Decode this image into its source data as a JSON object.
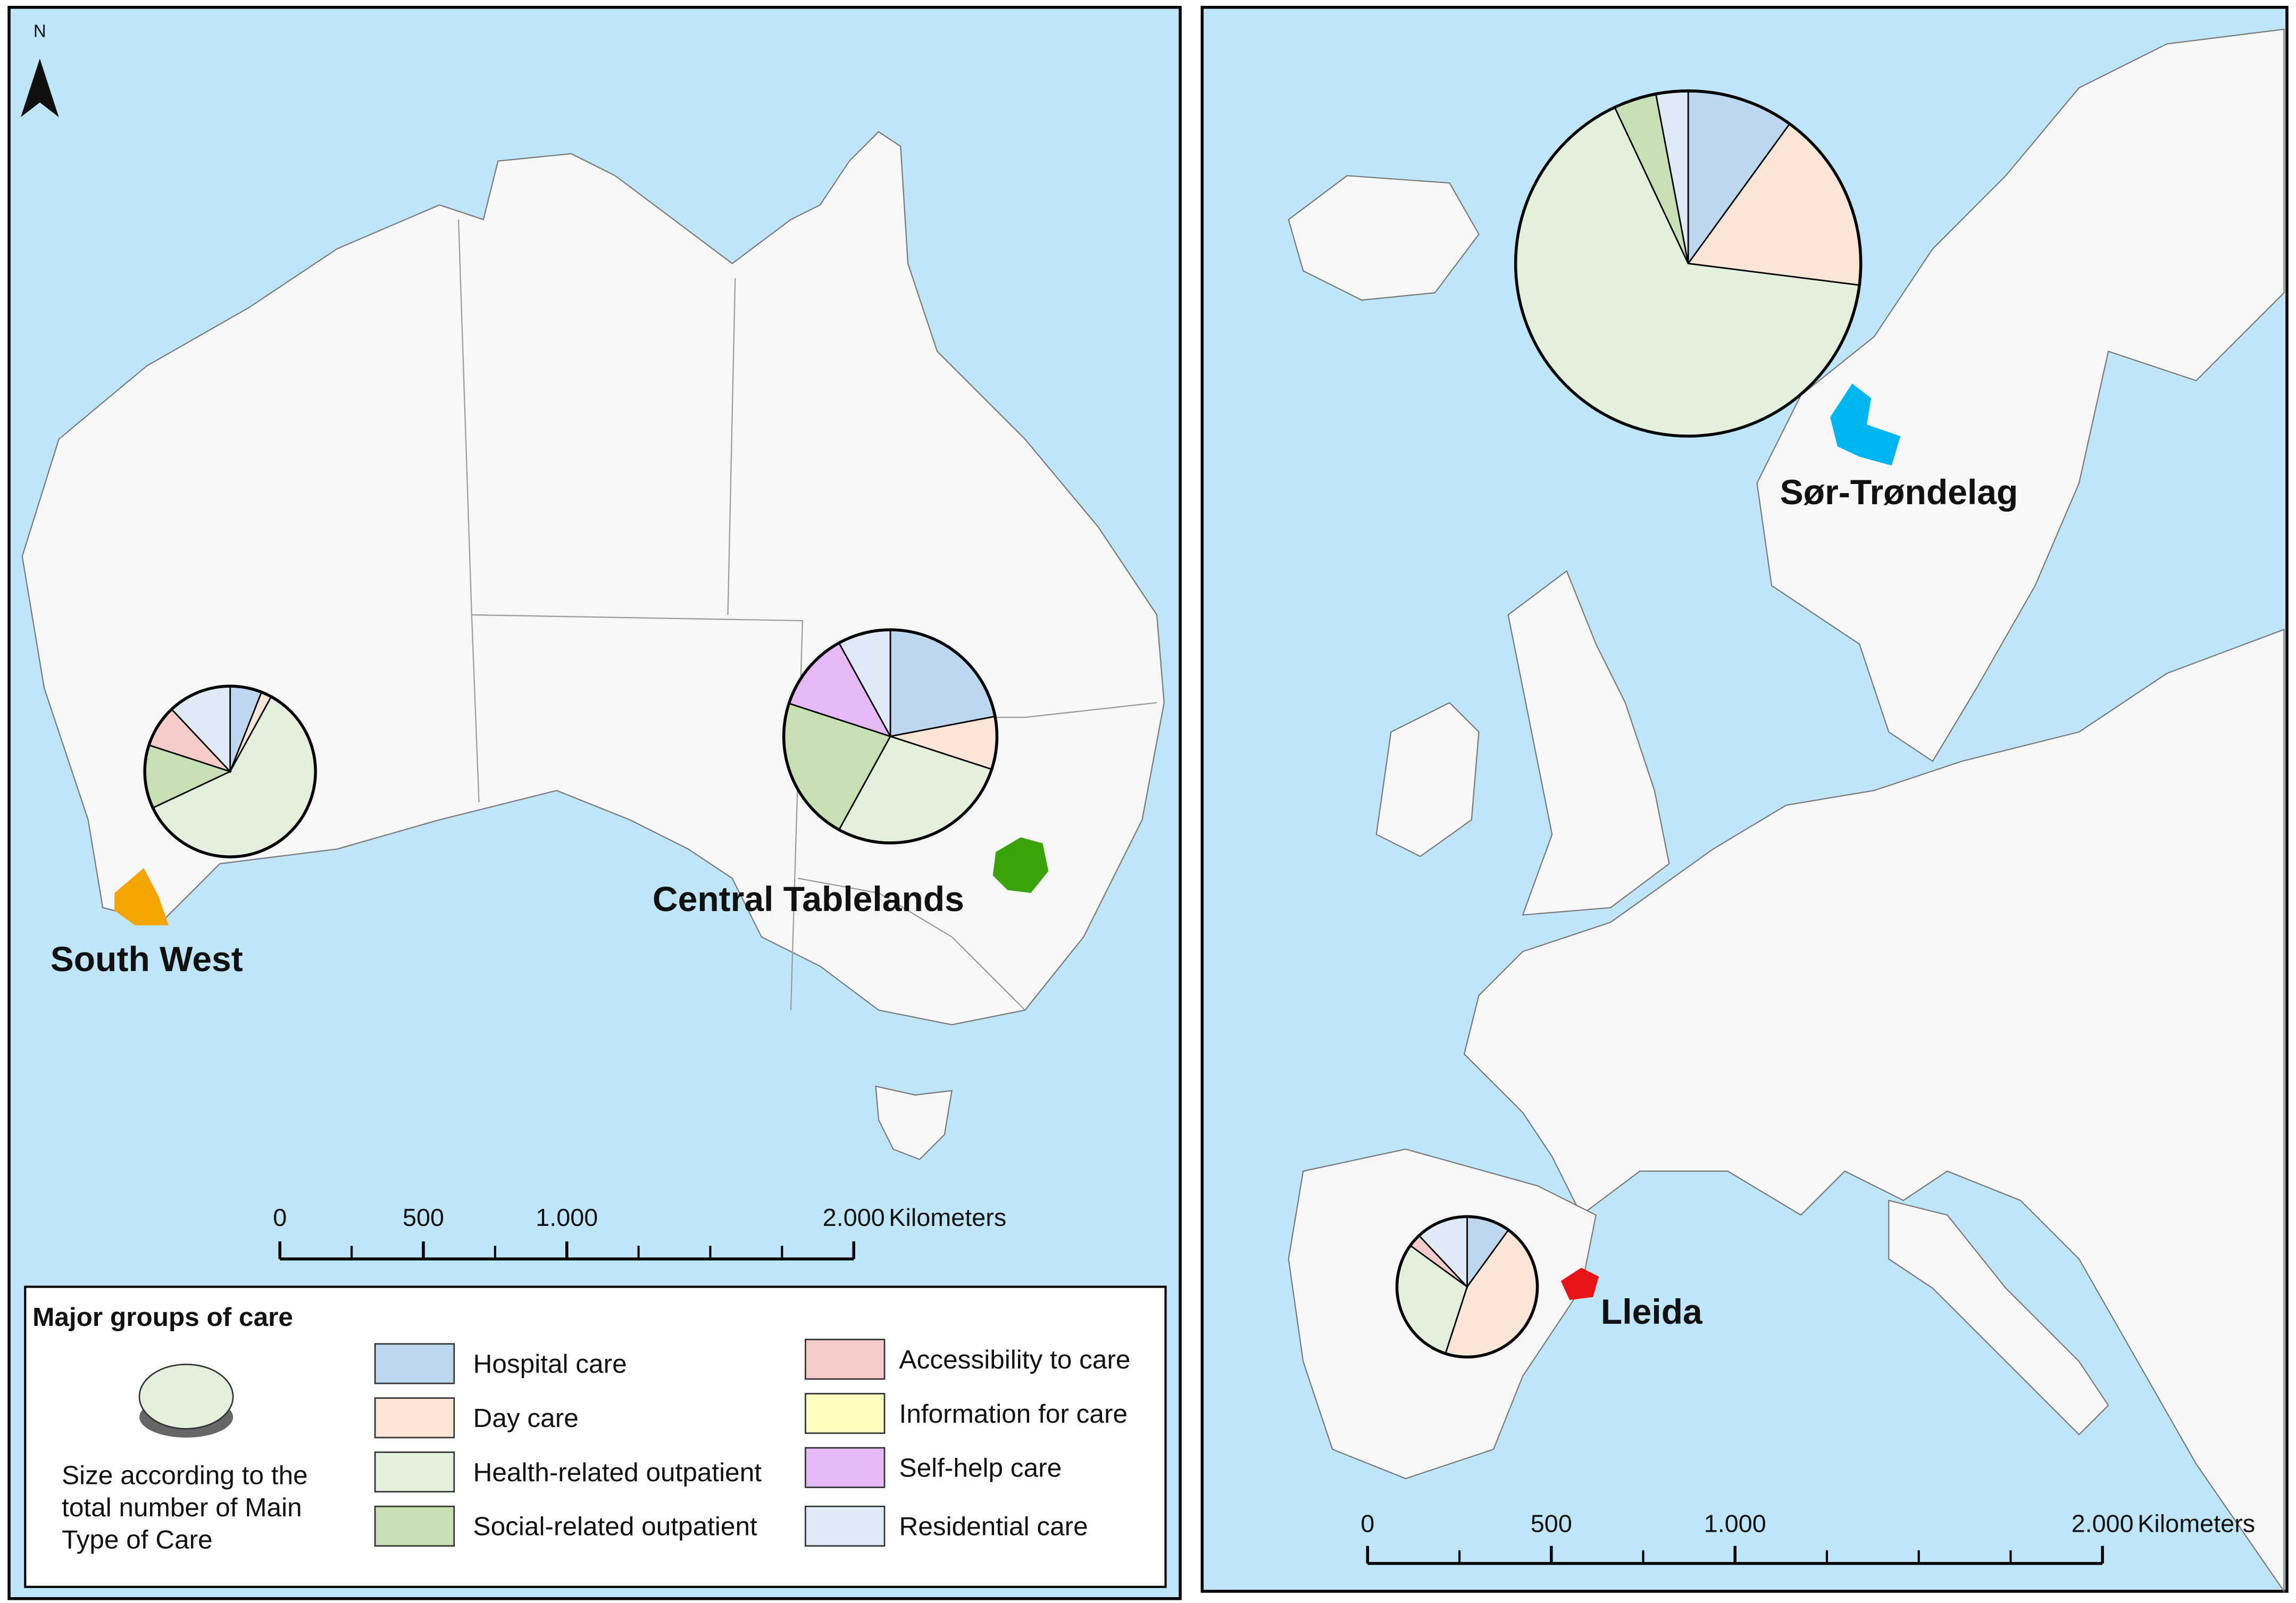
{
  "north_arrow": "N",
  "chart_data": {
    "type": "pie",
    "categories": [
      "Hospital care",
      "Day care",
      "Health-related outpatient",
      "Social-related outpatient",
      "Accessibility to care",
      "Information for care",
      "Self-help care",
      "Residential care"
    ],
    "colors": [
      "#bdd7ee",
      "#fbe5d6",
      "#e2efda",
      "#c6e0b4",
      "#f8cbcb",
      "#ffffc0",
      "#e6b8f7",
      "#deebf7"
    ],
    "pies": [
      {
        "label": "South West",
        "values": [
          6,
          2,
          60,
          12,
          8,
          0,
          0,
          12
        ],
        "total": 34
      },
      {
        "label": "Central Tablelands",
        "values": [
          22,
          8,
          28,
          22,
          0,
          0,
          12,
          8
        ],
        "total": 53
      },
      {
        "label": "Sør-Trøndelag",
        "values": [
          10,
          17,
          66,
          4,
          0,
          0,
          0,
          3
        ],
        "total": 139
      },
      {
        "label": "Lleida",
        "values": [
          10,
          45,
          30,
          0,
          3,
          0,
          0,
          12
        ],
        "total": 23
      }
    ]
  },
  "legend": {
    "title": "Major groups of care",
    "note": [
      "Size according to the",
      "total number of Main",
      "Type of Care"
    ]
  },
  "scale_bars": [
    {
      "ticks": [
        0,
        500,
        {
          "value": 1000,
          "label": "1.000"
        },
        {
          "value": 2000,
          "label": "2.000"
        }
      ],
      "unit": "Kilometers"
    },
    {
      "ticks": [
        0,
        500,
        {
          "value": 1000,
          "label": "1.000"
        },
        {
          "value": 2000,
          "label": "2.000"
        }
      ],
      "unit": "Kilometers"
    }
  ]
}
